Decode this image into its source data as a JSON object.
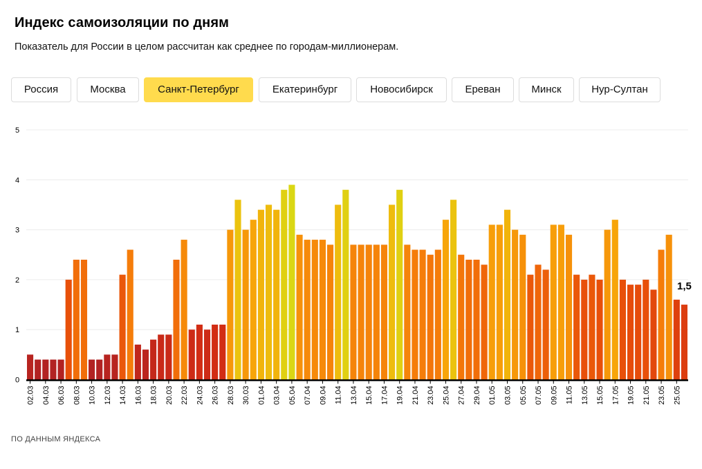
{
  "header": {
    "title": "Индекс самоизоляции по дням",
    "subtitle": "Показатель для России в целом рассчитан как среднее по городам-миллионерам."
  },
  "tabs": [
    {
      "label": "Россия",
      "active": false
    },
    {
      "label": "Москва",
      "active": false
    },
    {
      "label": "Санкт-Петербург",
      "active": true
    },
    {
      "label": "Екатеринбург",
      "active": false
    },
    {
      "label": "Новосибирск",
      "active": false
    },
    {
      "label": "Ереван",
      "active": false
    },
    {
      "label": "Минск",
      "active": false
    },
    {
      "label": "Нур-Султан",
      "active": false
    }
  ],
  "footer": {
    "source": "ПО ДАННЫМ ЯНДЕКСА"
  },
  "colors": {
    "accent_tab": "#ffdb4d"
  },
  "chart_data": {
    "type": "bar",
    "ylim": [
      0,
      5
    ],
    "yticks": [
      "0",
      "1",
      "2",
      "3",
      "4",
      "5"
    ],
    "last_value_label": "1,5",
    "categories": [
      "02.03",
      "03.03",
      "04.03",
      "05.03",
      "06.03",
      "07.03",
      "08.03",
      "09.03",
      "10.03",
      "11.03",
      "12.03",
      "13.03",
      "14.03",
      "15.03",
      "16.03",
      "17.03",
      "18.03",
      "19.03",
      "20.03",
      "21.03",
      "22.03",
      "23.03",
      "24.03",
      "25.03",
      "26.03",
      "27.03",
      "28.03",
      "29.03",
      "30.03",
      "31.03",
      "01.04",
      "02.04",
      "03.04",
      "04.04",
      "05.04",
      "06.04",
      "07.04",
      "08.04",
      "09.04",
      "10.04",
      "11.04",
      "12.04",
      "13.04",
      "14.04",
      "15.04",
      "16.04",
      "17.04",
      "18.04",
      "19.04",
      "20.04",
      "21.04",
      "22.04",
      "23.04",
      "24.04",
      "25.04",
      "26.04",
      "27.04",
      "28.04",
      "29.04",
      "30.04",
      "01.05",
      "02.05",
      "03.05",
      "04.05",
      "05.05",
      "06.05",
      "07.05",
      "08.05",
      "09.05",
      "10.05",
      "11.05",
      "12.05",
      "13.05",
      "14.05",
      "15.05",
      "16.05",
      "17.05",
      "18.05",
      "19.05",
      "20.05",
      "21.05",
      "22.05",
      "23.05",
      "24.05",
      "25.05",
      "26.05"
    ],
    "xtick_labels": [
      "02.03",
      "04.03",
      "06.03",
      "08.03",
      "10.03",
      "12.03",
      "14.03",
      "16.03",
      "18.03",
      "20.03",
      "22.03",
      "24.03",
      "26.03",
      "28.03",
      "30.03",
      "01.04",
      "03.04",
      "05.04",
      "07.04",
      "09.04",
      "11.04",
      "13.04",
      "15.04",
      "17.04",
      "19.04",
      "21.04",
      "23.04",
      "25.04",
      "27.04",
      "29.04",
      "01.05",
      "03.05",
      "05.05",
      "07.05",
      "09.05",
      "11.05",
      "13.05",
      "15.05",
      "17.05",
      "19.05",
      "21.05",
      "23.05",
      "25.05"
    ],
    "values": [
      0.5,
      0.4,
      0.4,
      0.4,
      0.4,
      2.0,
      2.4,
      2.4,
      0.4,
      0.4,
      0.5,
      0.5,
      2.1,
      2.6,
      0.7,
      0.6,
      0.8,
      0.9,
      0.9,
      2.4,
      2.8,
      1.0,
      1.1,
      1.0,
      1.1,
      1.1,
      3.0,
      3.6,
      3.0,
      3.2,
      3.4,
      3.5,
      3.4,
      3.8,
      3.9,
      2.9,
      2.8,
      2.8,
      2.8,
      2.7,
      3.5,
      3.8,
      2.7,
      2.7,
      2.7,
      2.7,
      2.7,
      3.5,
      3.8,
      2.7,
      2.6,
      2.6,
      2.5,
      2.6,
      3.2,
      3.6,
      2.5,
      2.4,
      2.4,
      2.3,
      3.1,
      3.1,
      3.4,
      3.0,
      2.9,
      2.1,
      2.3,
      2.2,
      3.1,
      3.1,
      2.9,
      2.1,
      2.0,
      2.1,
      2.0,
      3.0,
      3.2,
      2.0,
      1.9,
      1.9,
      2.0,
      1.8,
      2.6,
      2.9,
      1.6,
      1.5
    ]
  }
}
